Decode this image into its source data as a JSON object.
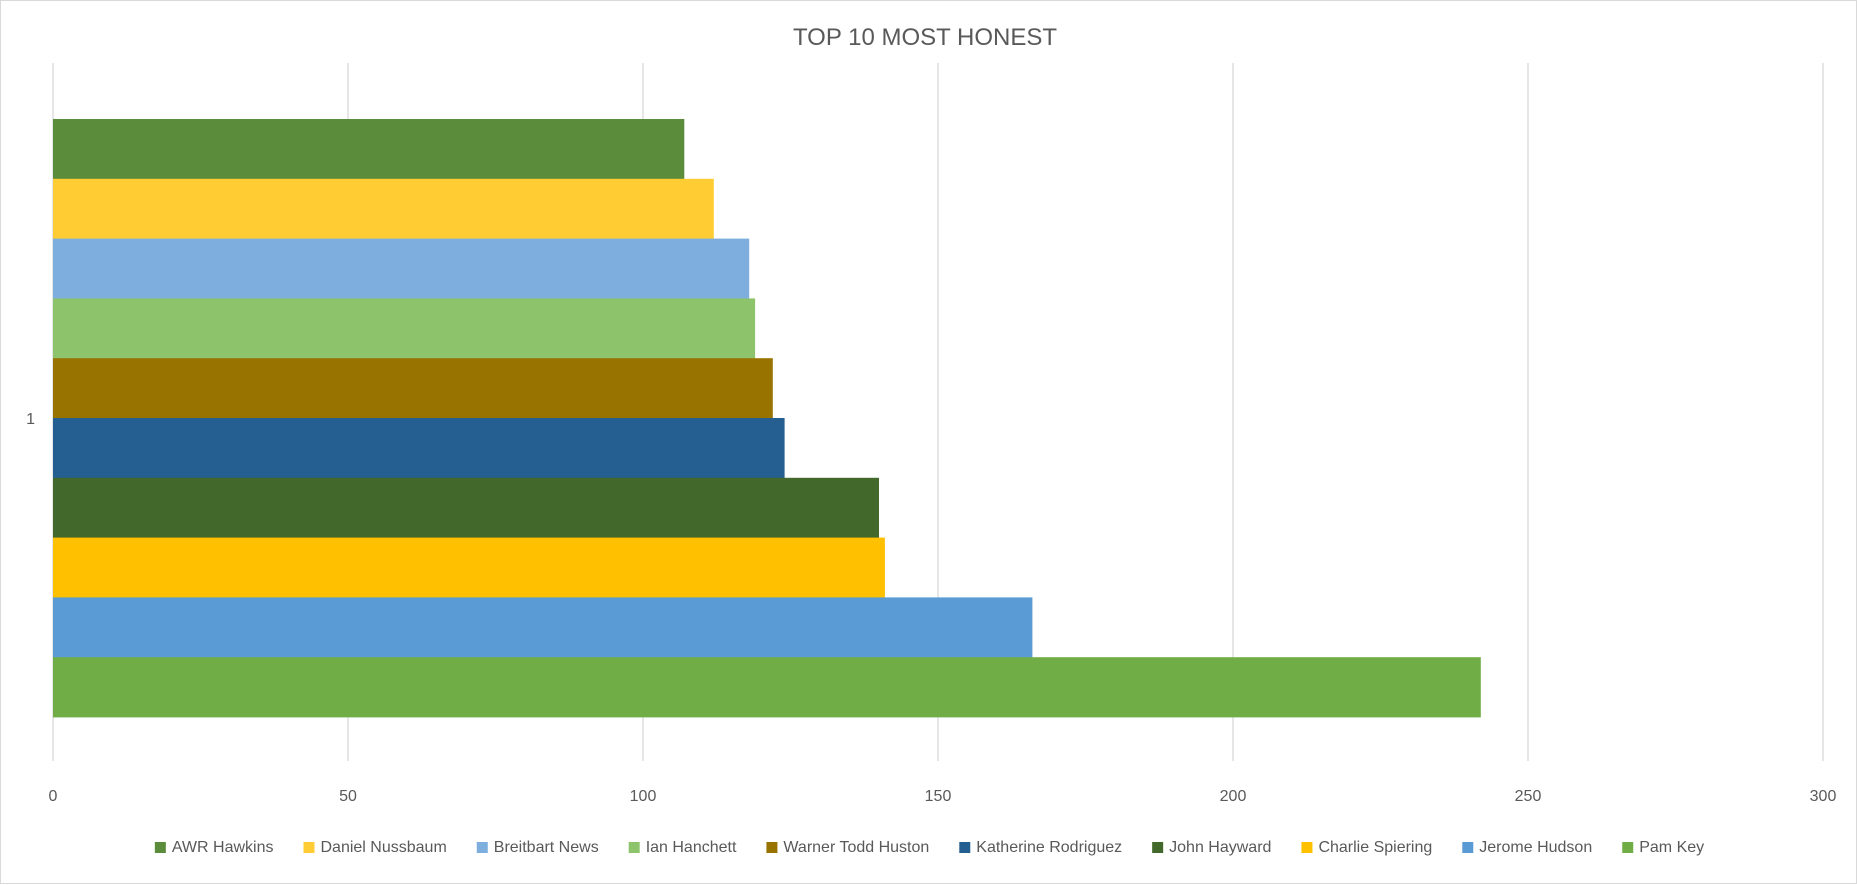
{
  "chart_data": {
    "type": "bar",
    "orientation": "horizontal",
    "title": "TOP 10 MOST HONEST",
    "xlabel": "",
    "ylabel": "",
    "categories": [
      "1"
    ],
    "xlim": [
      0,
      300
    ],
    "x_ticks": [
      0,
      50,
      100,
      150,
      200,
      250,
      300
    ],
    "grid": "vertical",
    "legend_position": "bottom",
    "series": [
      {
        "name": "AWR Hawkins",
        "values": [
          107
        ],
        "color": "#5b8c3c"
      },
      {
        "name": "Daniel Nussbaum",
        "values": [
          112
        ],
        "color": "#ffcd33"
      },
      {
        "name": "Breitbart News",
        "values": [
          118
        ],
        "color": "#7daede"
      },
      {
        "name": "Ian Hanchett",
        "values": [
          119
        ],
        "color": "#8dc36a"
      },
      {
        "name": "Warner Todd Huston",
        "values": [
          122
        ],
        "color": "#997300"
      },
      {
        "name": "Katherine Rodriguez",
        "values": [
          124
        ],
        "color": "#255e91"
      },
      {
        "name": "John Hayward",
        "values": [
          140
        ],
        "color": "#43682b"
      },
      {
        "name": "Charlie Spiering",
        "values": [
          141
        ],
        "color": "#ffc000"
      },
      {
        "name": "Jerome Hudson",
        "values": [
          166
        ],
        "color": "#5b9bd5"
      },
      {
        "name": "Pam Key",
        "values": [
          242
        ],
        "color": "#70ad47"
      }
    ]
  }
}
